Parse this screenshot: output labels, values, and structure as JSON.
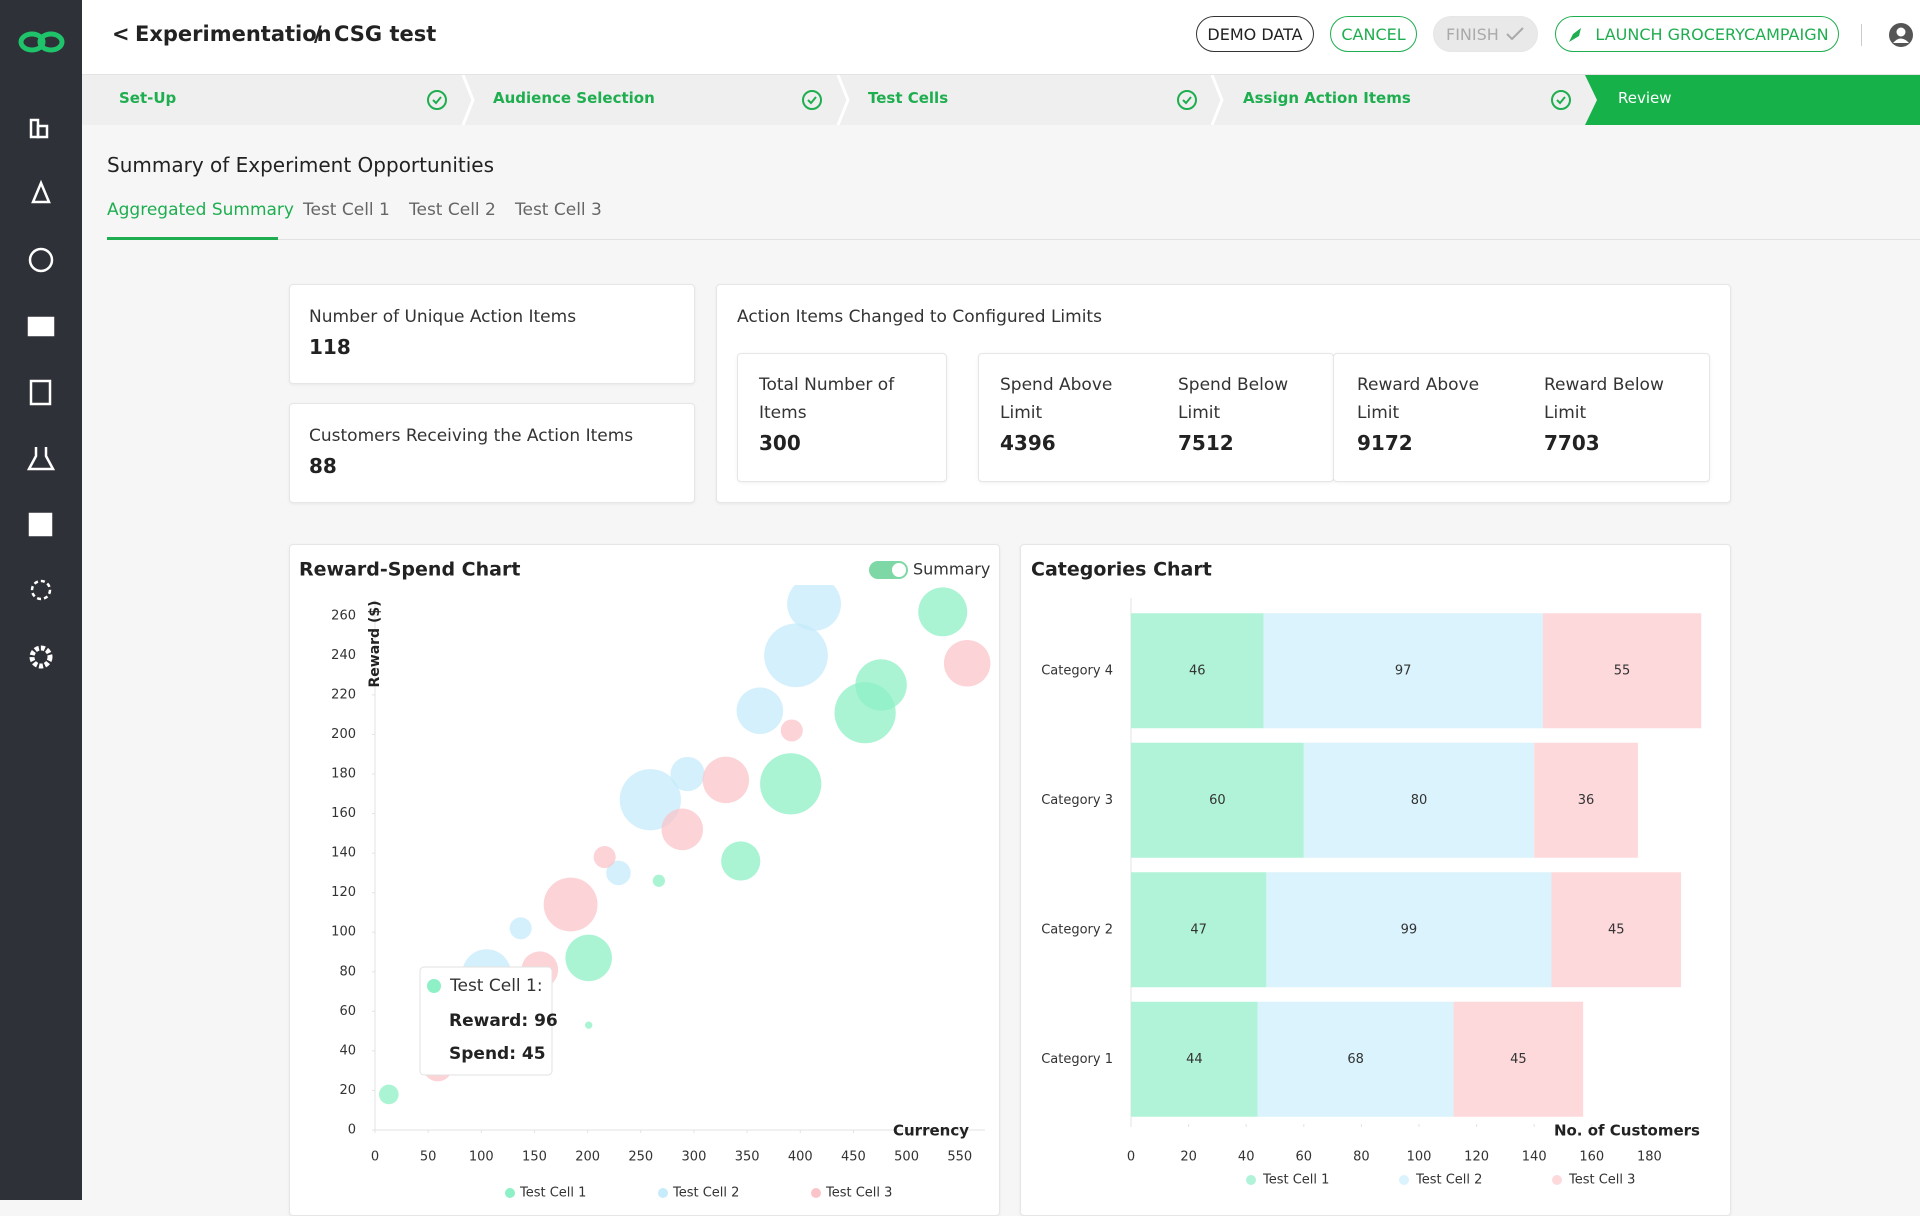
{
  "header": {
    "back": "<",
    "breadcrumb": [
      "Experimentation",
      "CSG test"
    ],
    "separator": "/",
    "buttons": [
      "DEMO DATA",
      "CANCEL",
      "FINISH",
      "LAUNCH GROCERYCAMPAIGN"
    ]
  },
  "steps": [
    "Set-Up",
    "Audience Selection",
    "Test Cells",
    "Assign Action Items",
    "Review"
  ],
  "title": "Summary of Experiment Opportunities",
  "tabs": [
    "Aggregated Summary",
    "Test Cell 1",
    "Test Cell 2",
    "Test Cell 3"
  ],
  "cards": {
    "unique": {
      "label": "Number of Unique Action Items",
      "value": 118
    },
    "customers": {
      "label": "Customers Receiving the Action Items",
      "value": 88
    },
    "limits": {
      "title": "Action Items Changed to Configured Limits",
      "items": [
        {
          "label": "Total Number of Items",
          "value": 300
        },
        {
          "label": "Spend Above Limit",
          "value": 4396
        },
        {
          "label": "Spend Below Limit",
          "value": 7512
        },
        {
          "label": "Reward Above Limit",
          "value": 9172
        },
        {
          "label": "Reward Below Limit",
          "value": 7703
        }
      ]
    }
  },
  "charts": [
    {
      "type": "bubble",
      "title": "Reward-Spend Chart",
      "toggle": "Summary",
      "x_label": "Currency",
      "y_label": "Reward ($)",
      "xlim": [
        0,
        570
      ],
      "ylim": [
        0,
        270
      ],
      "xticks": [
        0,
        50,
        100,
        150,
        200,
        250,
        300,
        350,
        400,
        450,
        500,
        550
      ],
      "yticks": [
        0,
        20,
        40,
        60,
        80,
        100,
        120,
        140,
        160,
        180,
        200,
        220,
        240,
        260
      ],
      "series": [
        {
          "name": "Test Cell 1",
          "color": "#8ef0c6",
          "x": [
            13,
            201,
            201,
            267,
            344,
            391,
            461,
            476,
            534
          ],
          "values": [
            18,
            53,
            87,
            126,
            136,
            175,
            211,
            225,
            262
          ],
          "sizes": [
            8,
            3,
            19,
            5,
            16,
            25,
            25,
            21,
            20
          ]
        },
        {
          "name": "Test Cell 2",
          "color": "#c6ebfb",
          "x": [
            105,
            137,
            229,
            259,
            294,
            362,
            396,
            413
          ],
          "values": [
            79,
            102,
            130,
            167,
            180,
            212,
            240,
            266
          ],
          "sizes": [
            20,
            9,
            10,
            25,
            14,
            19,
            26,
            22
          ]
        },
        {
          "name": "Test Cell 3",
          "color": "#fbc4c9",
          "x": [
            59,
            155,
            184,
            216,
            289,
            330,
            392,
            557
          ],
          "values": [
            32,
            81,
            114,
            138,
            152,
            177,
            202,
            236
          ],
          "sizes": [
            12,
            15,
            22,
            9,
            17,
            19,
            9,
            19
          ]
        }
      ],
      "tooltip": {
        "series": "Test Cell 1:",
        "lines": [
          "Reward: 96",
          "Spend: 45"
        ]
      }
    },
    {
      "type": "bar",
      "orientation": "horizontal",
      "stacked": true,
      "title": "Categories Chart",
      "x_label": "No. of Customers",
      "categories": [
        "Category 1",
        "Category 2",
        "Category 3",
        "Category 4"
      ],
      "xlim": [
        0,
        200
      ],
      "xticks": [
        0,
        20,
        40,
        60,
        80,
        100,
        120,
        140,
        160,
        180
      ],
      "series": [
        {
          "name": "Test Cell 1",
          "color": "#b0f3d9",
          "values": [
            44,
            47,
            60,
            46
          ]
        },
        {
          "name": "Test Cell 2",
          "color": "#daf3fc",
          "values": [
            68,
            99,
            80,
            97
          ]
        },
        {
          "name": "Test Cell 3",
          "color": "#fdd9dc",
          "values": [
            45,
            45,
            36,
            55
          ]
        }
      ]
    }
  ]
}
